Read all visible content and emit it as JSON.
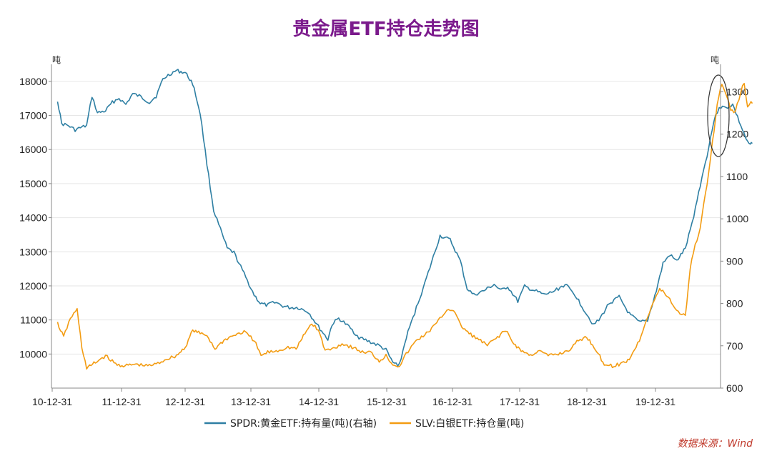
{
  "chart_data": {
    "type": "line",
    "title": "贵金属ETF持仓走势图",
    "title_color": "#7B1A8C",
    "x_tick_labels": [
      "10-12-31",
      "11-12-31",
      "12-12-31",
      "13-12-31",
      "14-12-31",
      "15-12-31",
      "16-12-31",
      "17-12-31",
      "18-12-31",
      "19-12-31"
    ],
    "x_range_years": [
      2010.9,
      2020.8
    ],
    "left_axis": {
      "unit": "吨",
      "ylim": [
        9000,
        18500
      ],
      "ticks": [
        10000,
        11000,
        12000,
        13000,
        14000,
        15000,
        16000,
        17000,
        18000
      ]
    },
    "right_axis": {
      "unit": "吨",
      "ylim": [
        600,
        1365
      ],
      "ticks": [
        600,
        700,
        800,
        900,
        1000,
        1100,
        1200,
        1300
      ]
    },
    "series": [
      {
        "name": "SPDR:黄金ETF:持有量(吨)(右轴)",
        "axis": "right",
        "color": "#2E7FA3",
        "points": [
          [
            2010.99,
            1280
          ],
          [
            2011.05,
            1225
          ],
          [
            2011.15,
            1220
          ],
          [
            2011.25,
            1210
          ],
          [
            2011.33,
            1215
          ],
          [
            2011.42,
            1220
          ],
          [
            2011.5,
            1290
          ],
          [
            2011.58,
            1250
          ],
          [
            2011.7,
            1255
          ],
          [
            2011.8,
            1275
          ],
          [
            2011.9,
            1285
          ],
          [
            2012.0,
            1270
          ],
          [
            2012.1,
            1295
          ],
          [
            2012.2,
            1290
          ],
          [
            2012.35,
            1275
          ],
          [
            2012.45,
            1290
          ],
          [
            2012.55,
            1330
          ],
          [
            2012.65,
            1342
          ],
          [
            2012.75,
            1350
          ],
          [
            2012.88,
            1345
          ],
          [
            2012.99,
            1320
          ],
          [
            2013.1,
            1250
          ],
          [
            2013.2,
            1130
          ],
          [
            2013.3,
            1020
          ],
          [
            2013.4,
            975
          ],
          [
            2013.5,
            930
          ],
          [
            2013.6,
            920
          ],
          [
            2013.75,
            870
          ],
          [
            2013.9,
            820
          ],
          [
            2013.99,
            800
          ],
          [
            2014.1,
            795
          ],
          [
            2014.2,
            805
          ],
          [
            2014.3,
            795
          ],
          [
            2014.42,
            790
          ],
          [
            2014.55,
            790
          ],
          [
            2014.7,
            780
          ],
          [
            2014.85,
            745
          ],
          [
            2014.99,
            715
          ],
          [
            2015.05,
            750
          ],
          [
            2015.15,
            765
          ],
          [
            2015.3,
            745
          ],
          [
            2015.45,
            720
          ],
          [
            2015.6,
            710
          ],
          [
            2015.75,
            700
          ],
          [
            2015.85,
            690
          ],
          [
            2015.95,
            660
          ],
          [
            2016.05,
            655
          ],
          [
            2016.15,
            720
          ],
          [
            2016.3,
            790
          ],
          [
            2016.45,
            860
          ],
          [
            2016.55,
            910
          ],
          [
            2016.65,
            960
          ],
          [
            2016.8,
            950
          ],
          [
            2016.95,
            900
          ],
          [
            2017.05,
            835
          ],
          [
            2017.15,
            820
          ],
          [
            2017.3,
            830
          ],
          [
            2017.45,
            845
          ],
          [
            2017.55,
            830
          ],
          [
            2017.65,
            840
          ],
          [
            2017.8,
            805
          ],
          [
            2017.9,
            840
          ],
          [
            2018.05,
            830
          ],
          [
            2018.2,
            820
          ],
          [
            2018.35,
            830
          ],
          [
            2018.5,
            845
          ],
          [
            2018.65,
            820
          ],
          [
            2018.8,
            780
          ],
          [
            2018.92,
            750
          ],
          [
            2019.0,
            760
          ],
          [
            2019.15,
            800
          ],
          [
            2019.3,
            815
          ],
          [
            2019.45,
            775
          ],
          [
            2019.6,
            755
          ],
          [
            2019.72,
            760
          ],
          [
            2019.85,
            830
          ],
          [
            2019.95,
            895
          ],
          [
            2020.05,
            915
          ],
          [
            2020.15,
            900
          ],
          [
            2020.28,
            930
          ],
          [
            2020.38,
            990
          ],
          [
            2020.5,
            1080
          ],
          [
            2020.6,
            1150
          ],
          [
            2020.7,
            1230
          ],
          [
            2020.78,
            1265
          ],
          [
            2020.88,
            1262
          ],
          [
            2020.98,
            1270
          ],
          [
            2021.1,
            1220
          ],
          [
            2021.2,
            1180
          ],
          [
            2021.24,
            1175
          ],
          [
            2021.27,
            1178
          ]
        ]
      },
      {
        "name": "SLV:白银ETF:持仓量(吨)",
        "axis": "left",
        "color": "#F39C12",
        "points": [
          [
            2010.99,
            10900
          ],
          [
            2011.08,
            10500
          ],
          [
            2011.18,
            11050
          ],
          [
            2011.28,
            11300
          ],
          [
            2011.35,
            10200
          ],
          [
            2011.42,
            9580
          ],
          [
            2011.55,
            9750
          ],
          [
            2011.7,
            9950
          ],
          [
            2011.85,
            9700
          ],
          [
            2011.99,
            9650
          ],
          [
            2012.15,
            9700
          ],
          [
            2012.3,
            9650
          ],
          [
            2012.45,
            9700
          ],
          [
            2012.6,
            9850
          ],
          [
            2012.75,
            9950
          ],
          [
            2012.88,
            10200
          ],
          [
            2012.99,
            10700
          ],
          [
            2013.1,
            10600
          ],
          [
            2013.2,
            10550
          ],
          [
            2013.32,
            10150
          ],
          [
            2013.45,
            10400
          ],
          [
            2013.6,
            10550
          ],
          [
            2013.75,
            10650
          ],
          [
            2013.9,
            10400
          ],
          [
            2014.0,
            9950
          ],
          [
            2014.1,
            10050
          ],
          [
            2014.25,
            10100
          ],
          [
            2014.4,
            10200
          ],
          [
            2014.52,
            10150
          ],
          [
            2014.65,
            10600
          ],
          [
            2014.75,
            10900
          ],
          [
            2014.85,
            10700
          ],
          [
            2014.95,
            10100
          ],
          [
            2015.05,
            10150
          ],
          [
            2015.2,
            10300
          ],
          [
            2015.35,
            10200
          ],
          [
            2015.5,
            10050
          ],
          [
            2015.62,
            10050
          ],
          [
            2015.75,
            9800
          ],
          [
            2015.85,
            9950
          ],
          [
            2015.95,
            9700
          ],
          [
            2016.05,
            9650
          ],
          [
            2016.15,
            10000
          ],
          [
            2016.3,
            10400
          ],
          [
            2016.45,
            10600
          ],
          [
            2016.6,
            10900
          ],
          [
            2016.75,
            11300
          ],
          [
            2016.85,
            11300
          ],
          [
            2016.95,
            10850
          ],
          [
            2017.08,
            10600
          ],
          [
            2017.2,
            10450
          ],
          [
            2017.35,
            10250
          ],
          [
            2017.5,
            10500
          ],
          [
            2017.62,
            10700
          ],
          [
            2017.72,
            10350
          ],
          [
            2017.85,
            10100
          ],
          [
            2017.99,
            9950
          ],
          [
            2018.1,
            10100
          ],
          [
            2018.25,
            9950
          ],
          [
            2018.4,
            10000
          ],
          [
            2018.55,
            10100
          ],
          [
            2018.7,
            10400
          ],
          [
            2018.82,
            10500
          ],
          [
            2018.95,
            10150
          ],
          [
            2019.08,
            9700
          ],
          [
            2019.2,
            9650
          ],
          [
            2019.32,
            9700
          ],
          [
            2019.45,
            9850
          ],
          [
            2019.6,
            10400
          ],
          [
            2019.7,
            11000
          ],
          [
            2019.8,
            11500
          ],
          [
            2019.9,
            11900
          ],
          [
            2019.99,
            11750
          ],
          [
            2020.05,
            11600
          ],
          [
            2020.12,
            11350
          ],
          [
            2020.2,
            11200
          ],
          [
            2020.28,
            11150
          ],
          [
            2020.3,
            11500
          ],
          [
            2020.35,
            12500
          ],
          [
            2020.4,
            13000
          ],
          [
            2020.5,
            13700
          ],
          [
            2020.6,
            15000
          ],
          [
            2020.68,
            16200
          ],
          [
            2020.75,
            17300
          ],
          [
            2020.82,
            17950
          ],
          [
            2020.88,
            17600
          ],
          [
            2020.95,
            17200
          ],
          [
            2021.02,
            17100
          ],
          [
            2021.1,
            17700
          ],
          [
            2021.15,
            17950
          ],
          [
            2021.2,
            17200
          ],
          [
            2021.25,
            17400
          ],
          [
            2021.27,
            17350
          ]
        ]
      }
    ],
    "legend_position": "bottom",
    "annotation": "ellipse highlighting recent decline at right end",
    "source": "数据来源：Wind",
    "source_color": "#C0392B",
    "axis_color": "#888888",
    "grid_color": "#E6E6E6"
  }
}
